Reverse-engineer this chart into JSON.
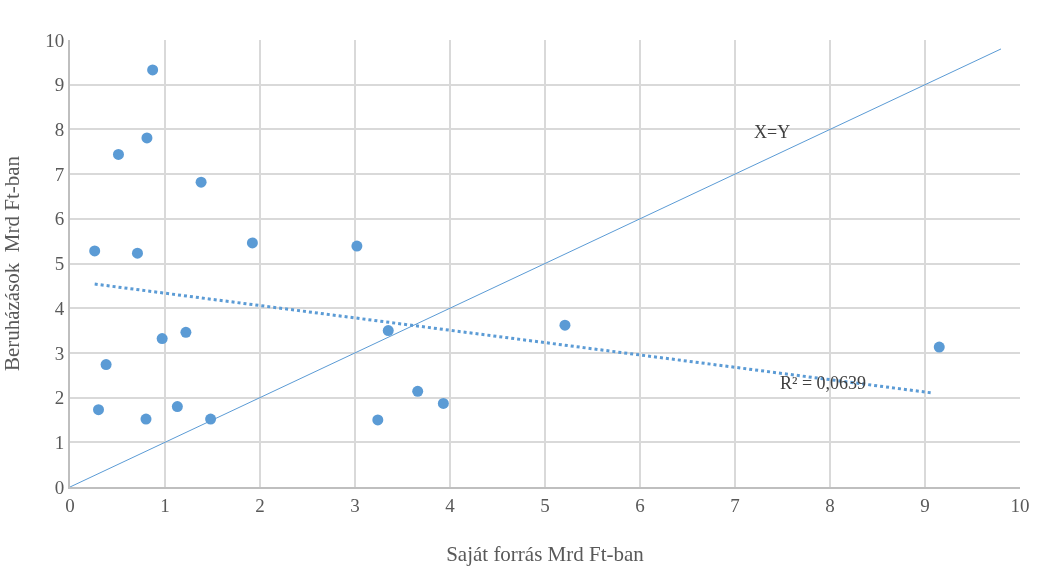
{
  "chart_data": {
    "type": "scatter",
    "xlabel": "Saját forrás Mrd Ft-ban",
    "ylabel": "Beruházások  Mrd Ft-ban",
    "xlim": [
      0,
      10
    ],
    "ylim": [
      0,
      10
    ],
    "xticks": [
      0,
      1,
      2,
      3,
      4,
      5,
      6,
      7,
      8,
      9,
      10
    ],
    "yticks": [
      0,
      1,
      2,
      3,
      4,
      5,
      6,
      7,
      8,
      9,
      10
    ],
    "grid": true,
    "series": [
      {
        "marker": "circle",
        "color": "#5b9bd5",
        "x": [
          0.26,
          0.51,
          0.81,
          0.87,
          1.38,
          0.71,
          1.92,
          3.02,
          0.38,
          0.3,
          0.8,
          0.97,
          1.22,
          1.13,
          1.48,
          3.35,
          3.24,
          3.66,
          3.93,
          5.21,
          9.15
        ],
        "values": [
          5.28,
          7.44,
          7.81,
          9.33,
          6.82,
          5.23,
          5.46,
          5.39,
          2.74,
          1.73,
          1.52,
          3.32,
          3.46,
          1.8,
          1.52,
          3.5,
          1.5,
          2.14,
          1.87,
          3.62,
          3.13
        ]
      },
      {
        "type": "line",
        "marker": "none",
        "line_style": "dotted",
        "color": "#5b9bd5",
        "x": [
          0.26,
          9.09
        ],
        "values": [
          4.54,
          2.1
        ]
      },
      {
        "type": "line",
        "marker": "none",
        "line_style": "solid",
        "color": "#5b9bd5",
        "x": [
          0,
          9.8
        ],
        "values": [
          0,
          9.8
        ]
      }
    ],
    "annotations": [
      "X=Y",
      "R² = 0,0639"
    ]
  }
}
